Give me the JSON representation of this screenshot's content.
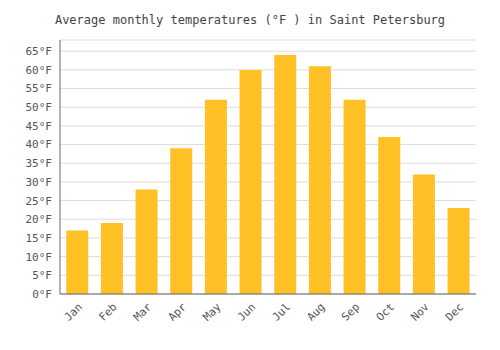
{
  "chart_data": {
    "type": "bar",
    "title": "Average monthly temperatures (°F ) in Saint Petersburg",
    "categories": [
      "Jan",
      "Feb",
      "Mar",
      "Apr",
      "May",
      "Jun",
      "Jul",
      "Aug",
      "Sep",
      "Oct",
      "Nov",
      "Dec"
    ],
    "values": [
      17,
      19,
      28,
      39,
      52,
      60,
      64,
      61,
      52,
      42,
      32,
      23
    ],
    "color": "#FFC125",
    "ylim": [
      0,
      68
    ],
    "yticks": [
      {
        "value": 0,
        "label": "0°F"
      },
      {
        "value": 5,
        "label": "5°F"
      },
      {
        "value": 10,
        "label": "10°F"
      },
      {
        "value": 15,
        "label": "15°F"
      },
      {
        "value": 20,
        "label": "20°F"
      },
      {
        "value": 25,
        "label": "25°F"
      },
      {
        "value": 30,
        "label": "30°F"
      },
      {
        "value": 35,
        "label": "35°F"
      },
      {
        "value": 40,
        "label": "40°F"
      },
      {
        "value": 45,
        "label": "45°F"
      },
      {
        "value": 50,
        "label": "50°F"
      },
      {
        "value": 55,
        "label": "55°F"
      },
      {
        "value": 60,
        "label": "60°F"
      },
      {
        "value": 65,
        "label": "65°F"
      }
    ],
    "grid": true
  }
}
